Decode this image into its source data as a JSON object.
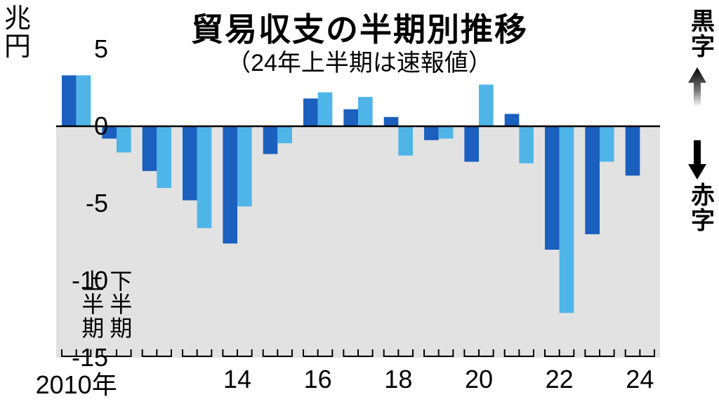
{
  "chart": {
    "type": "bar",
    "title": "貿易収支の半期別推移",
    "subtitle": "（24年上半期は速報値）",
    "y_unit_label": "兆円",
    "ylim": [
      -15,
      5
    ],
    "yticks": [
      5,
      0,
      -5,
      -10,
      -15
    ],
    "background_color": "#ffffff",
    "shade_color": "#e2e2e2",
    "axis_color": "#000000",
    "tick_fontsize": 36,
    "title_fontsize": 46,
    "subtitle_fontsize": 34,
    "bar_width": 0.72,
    "colors": {
      "h1": "#1b5fbf",
      "h2": "#4fb5e8"
    },
    "years": [
      2010,
      2011,
      2012,
      2013,
      2014,
      2015,
      2016,
      2017,
      2018,
      2019,
      2020,
      2021,
      2022,
      2023,
      2024
    ],
    "xticks": [
      {
        "year": 2010,
        "label": "2010年"
      },
      {
        "year": 2014,
        "label": "14"
      },
      {
        "year": 2016,
        "label": "16"
      },
      {
        "year": 2018,
        "label": "18"
      },
      {
        "year": 2020,
        "label": "20"
      },
      {
        "year": 2022,
        "label": "22"
      },
      {
        "year": 2024,
        "label": "24"
      }
    ],
    "series": [
      {
        "year": 2010,
        "h1": 3.3,
        "h2": 3.3
      },
      {
        "year": 2011,
        "h1": -0.8,
        "h2": -1.7
      },
      {
        "year": 2012,
        "h1": -2.9,
        "h2": -4.0
      },
      {
        "year": 2013,
        "h1": -4.8,
        "h2": -6.6
      },
      {
        "year": 2014,
        "h1": -7.6,
        "h2": -5.2
      },
      {
        "year": 2015,
        "h1": -1.8,
        "h2": -1.1
      },
      {
        "year": 2016,
        "h1": 1.8,
        "h2": 2.2
      },
      {
        "year": 2017,
        "h1": 1.1,
        "h2": 1.9
      },
      {
        "year": 2018,
        "h1": 0.6,
        "h2": -1.9
      },
      {
        "year": 2019,
        "h1": -0.9,
        "h2": -0.8
      },
      {
        "year": 2020,
        "h1": -2.3,
        "h2": 2.7
      },
      {
        "year": 2021,
        "h1": 0.8,
        "h2": -2.4
      },
      {
        "year": 2022,
        "h1": -8.0,
        "h2": -12.1
      },
      {
        "year": 2023,
        "h1": -7.0,
        "h2": -2.3
      },
      {
        "year": 2024,
        "h1": -3.2,
        "h2": null
      }
    ],
    "legend": {
      "h1": "上半期",
      "h2": "下半期"
    },
    "side_labels": {
      "surplus": "黒字",
      "deficit": "赤字"
    },
    "arrow_color": "#000000"
  }
}
